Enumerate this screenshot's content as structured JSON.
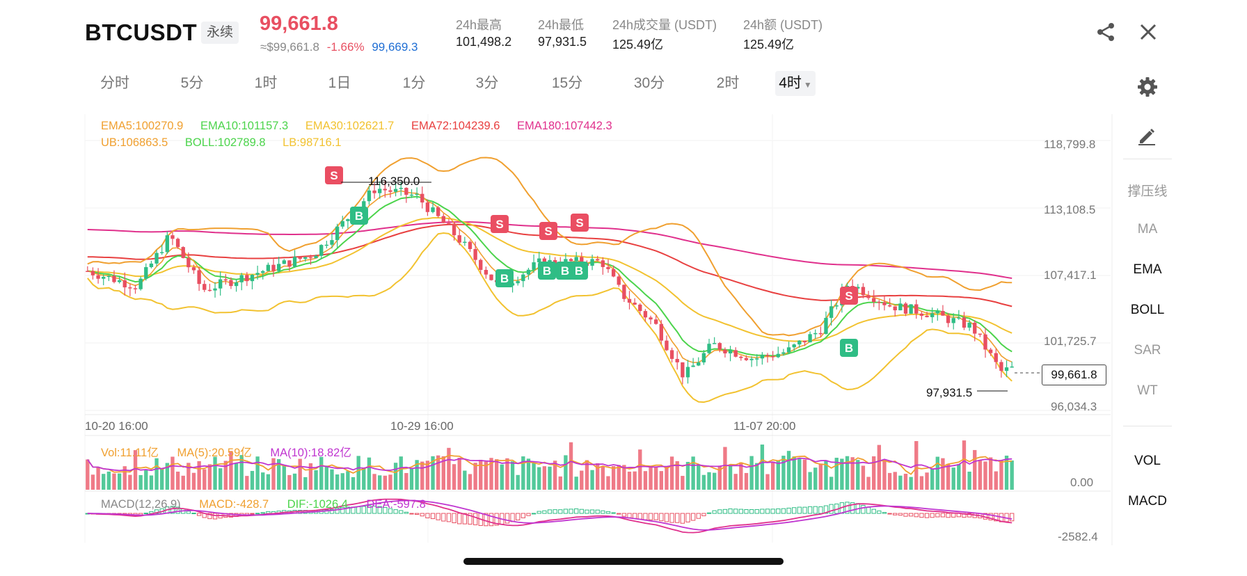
{
  "header": {
    "symbol": "BTCUSDT",
    "contract_type": "永续",
    "last_price": "99,661.8",
    "usd_price": "≈$99,661.8",
    "change_pct": "-1.66%",
    "mark_price": "99,669.3",
    "stats": [
      {
        "label": "24h最高",
        "value": "101,498.2"
      },
      {
        "label": "24h最低",
        "value": "97,931.5"
      },
      {
        "label": "24h成交量 (USDT)",
        "value": "125.49亿"
      },
      {
        "label": "24h额 (USDT)",
        "value": "125.49亿"
      }
    ],
    "share_icon": "share-icon",
    "close_icon": "close-icon"
  },
  "timeframes": {
    "tabs": [
      "分时",
      "5分",
      "1时",
      "1日",
      "1分",
      "3分",
      "15分",
      "30分",
      "2时",
      "4时"
    ],
    "active": "4时",
    "settings_icon": "gear-icon"
  },
  "indicators": {
    "ema_line": [
      {
        "label": "EMA5:100270.9",
        "color": "#f0a030"
      },
      {
        "label": "EMA10:101157.3",
        "color": "#4cd44c"
      },
      {
        "label": "EMA30:102621.7",
        "color": "#f2c230"
      },
      {
        "label": "EMA72:104239.6",
        "color": "#e84040"
      },
      {
        "label": "EMA180:107442.3",
        "color": "#e0308c"
      }
    ],
    "boll_line": [
      {
        "label": "UB:106863.5",
        "color": "#f0a030"
      },
      {
        "label": "BOLL:102789.8",
        "color": "#4cd44c"
      },
      {
        "label": "LB:98716.1",
        "color": "#f2c230"
      }
    ],
    "vol_line": [
      {
        "label": "Vol:11.11亿",
        "color": "#f0a030"
      },
      {
        "label": "MA(5):20.59亿",
        "color": "#f0a030"
      },
      {
        "label": "MA(10):18.82亿",
        "color": "#c035d0"
      }
    ],
    "macd_line": [
      {
        "label": "MACD(12,26,9)",
        "color": "#888888"
      },
      {
        "label": "MACD:-428.7",
        "color": "#f0a030"
      },
      {
        "label": "DIF:-1026.4",
        "color": "#4cd44c"
      },
      {
        "label": "DEA:-597.8",
        "color": "#c035d0"
      }
    ]
  },
  "chart_data": {
    "type": "candlestick",
    "price_axis_ticks": [
      "118,799.8",
      "113,108.5",
      "107,417.1",
      "101,725.7",
      "96,034.3"
    ],
    "price_tick_values": [
      118799.8,
      113108.5,
      107417.1,
      101725.7,
      96034.3
    ],
    "x_labels": [
      "10-20 16:00",
      "10-29 16:00",
      "11-07 20:00"
    ],
    "current_price_label": "99,661.8",
    "high_marker": "116,350.0",
    "low_marker": "97,931.5",
    "volume_axis_label": "0.00",
    "macd_axis_label": "-2582.4",
    "up_color": "#2fbd85",
    "down_color": "#e84f61",
    "signals": [
      "S",
      "B",
      "S",
      "B",
      "S",
      "B",
      "S",
      "B",
      "S",
      "S",
      "B",
      "B",
      "B",
      "S",
      "B"
    ],
    "price_range": [
      96034.3,
      118799.8
    ]
  },
  "toolbar": {
    "pencil_icon": "pencil-icon",
    "items": [
      "撑压线",
      "MA",
      "EMA",
      "BOLL",
      "SAR",
      "WT",
      "VOL",
      "MACD"
    ],
    "active": [
      "EMA",
      "BOLL",
      "VOL",
      "MACD"
    ]
  }
}
